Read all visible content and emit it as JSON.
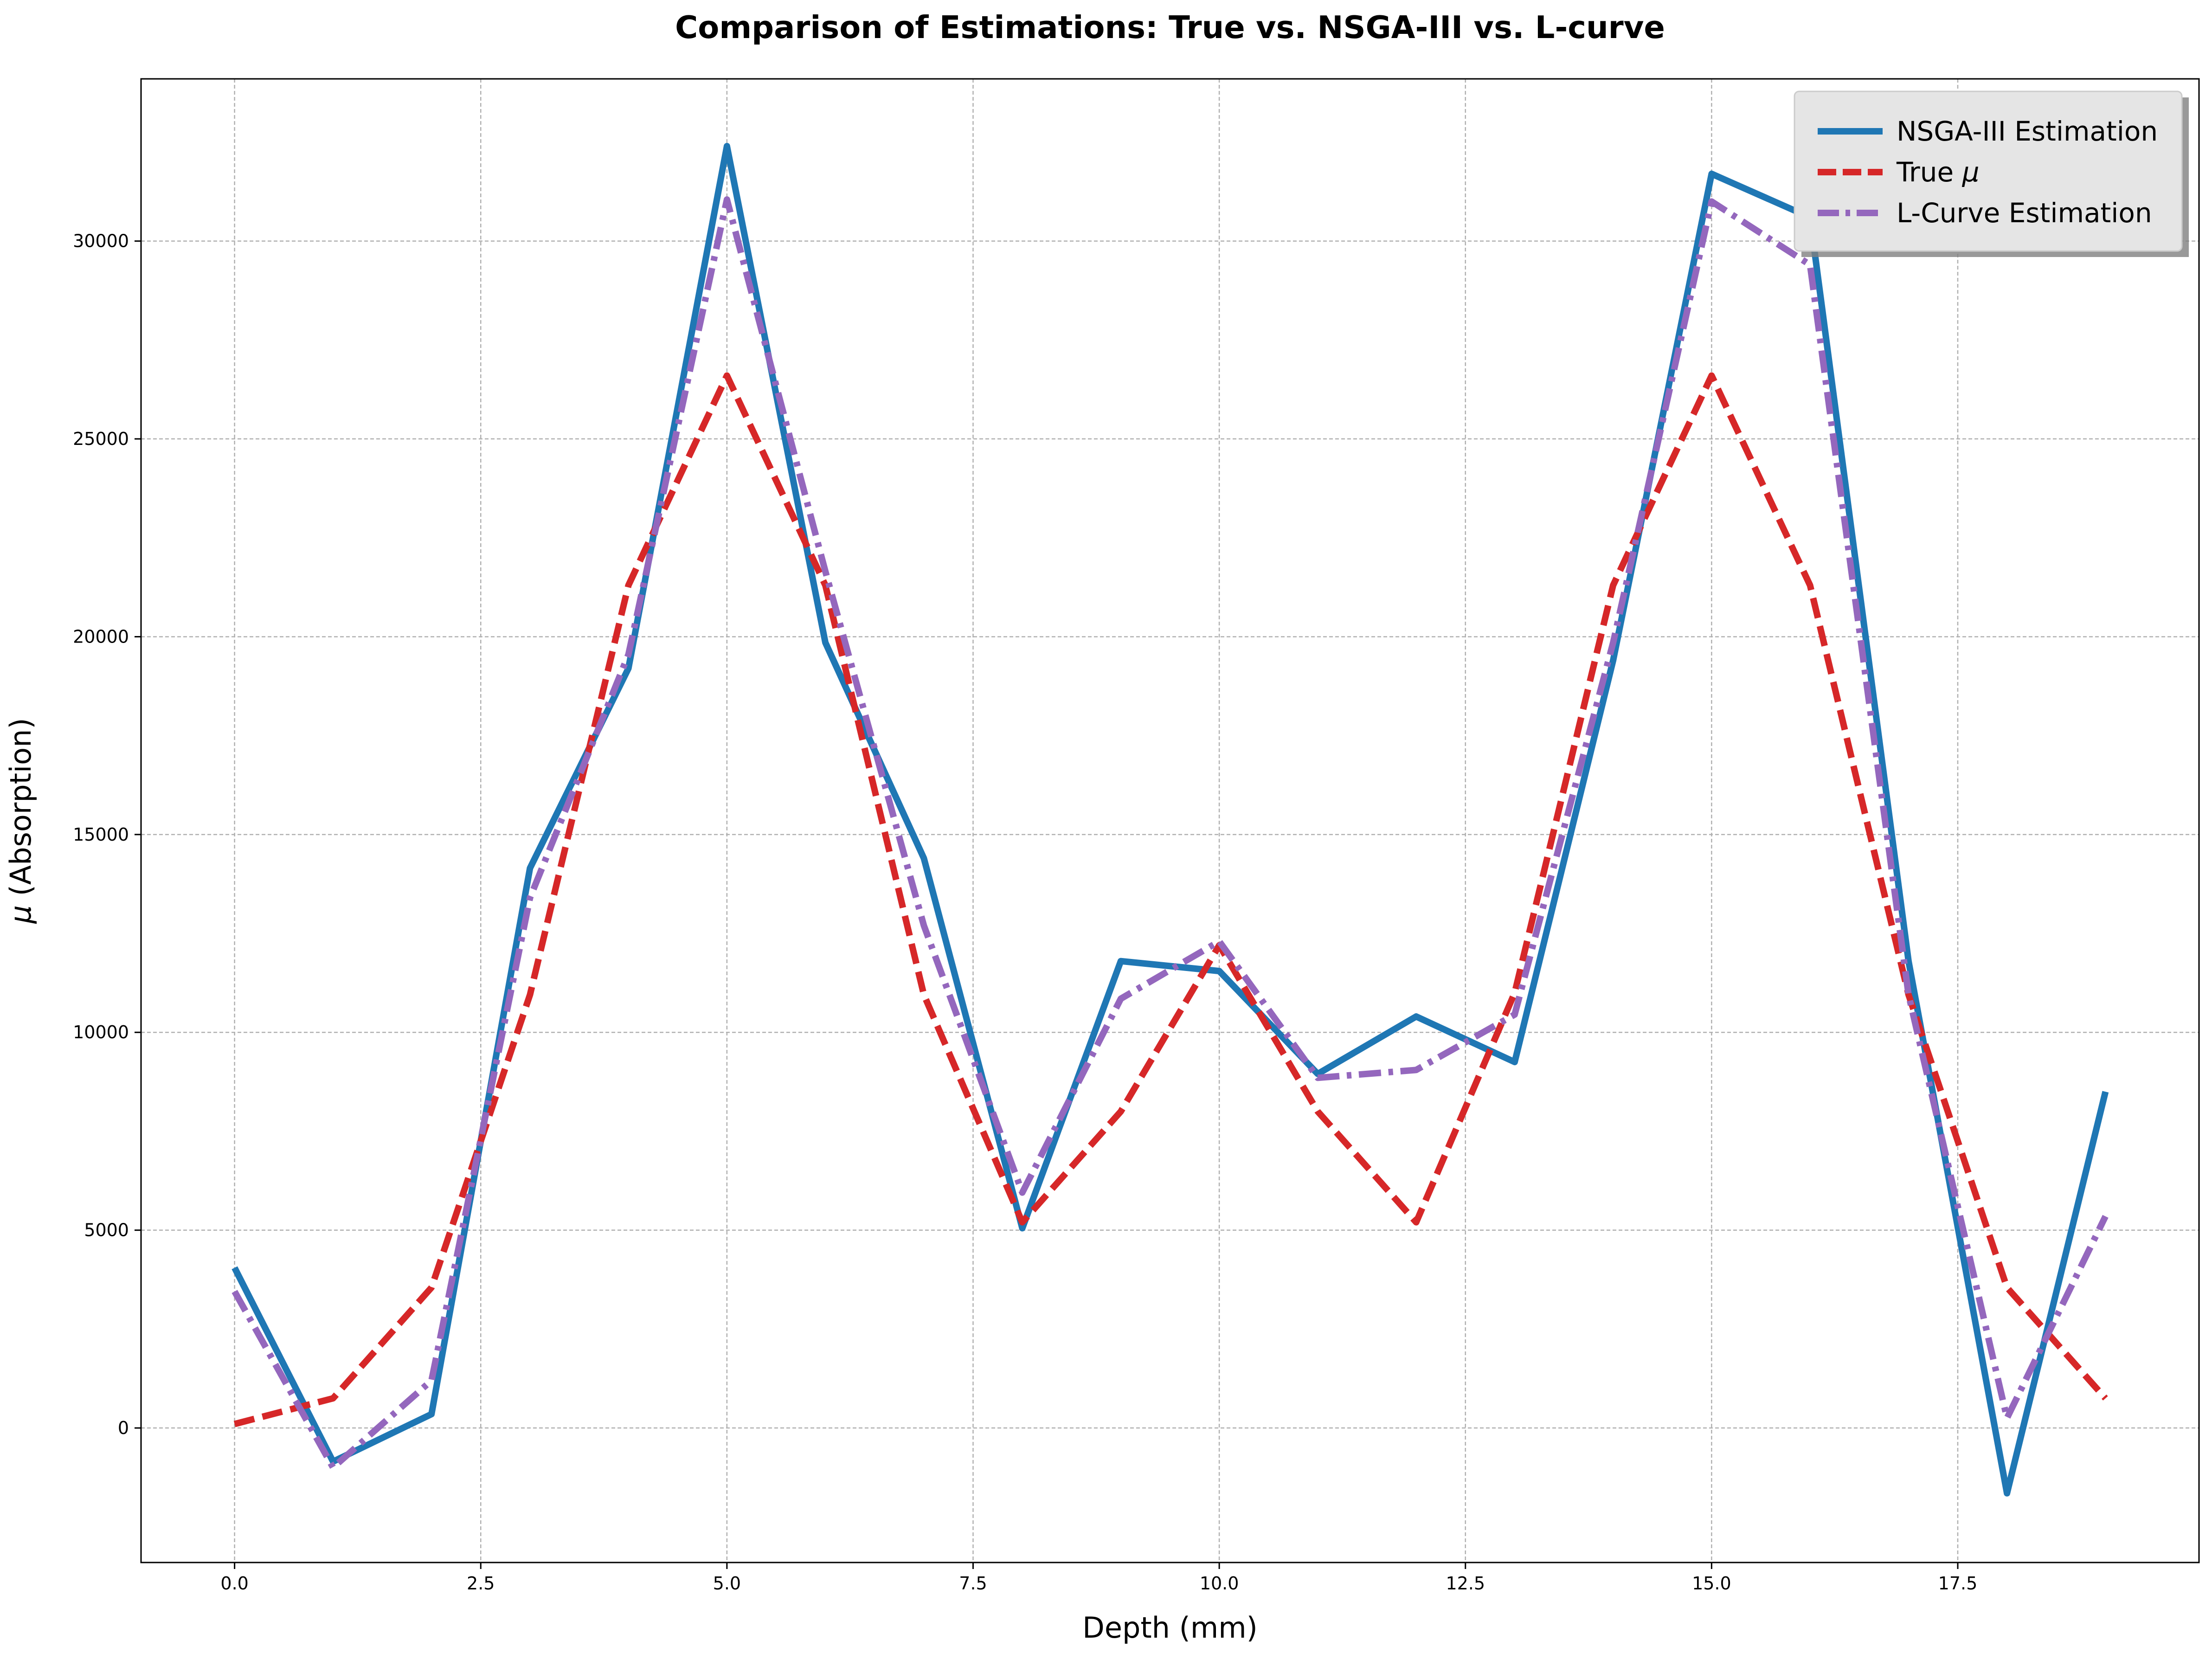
{
  "chart_data": {
    "type": "line",
    "title": "Comparison of Estimations: True vs. NSGA-III vs. L-curve",
    "xlabel": "Depth (mm)",
    "ylabel_symbol": "μ",
    "ylabel_text": " (Absorption)",
    "xlim": [
      -0.95,
      19.95
    ],
    "ylim": [
      -3400,
      34100
    ],
    "grid": true,
    "legend_position": "top-right",
    "x_ticks": [
      0,
      2.5,
      5,
      7.5,
      10,
      12.5,
      15,
      17.5
    ],
    "x_tick_labels": [
      "0.0",
      "2.5",
      "5.0",
      "7.5",
      "10.0",
      "12.5",
      "15.0",
      "17.5"
    ],
    "y_ticks": [
      0,
      5000,
      10000,
      15000,
      20000,
      25000,
      30000
    ],
    "y_tick_labels": [
      "0",
      "5000",
      "10000",
      "15000",
      "20000",
      "25000",
      "30000"
    ],
    "x": [
      0,
      1,
      2,
      3,
      4,
      5,
      6,
      7,
      8,
      9,
      10,
      11,
      12,
      13,
      14,
      15,
      16,
      17,
      18,
      19
    ],
    "series": [
      {
        "name": "NSGA-III Estimation",
        "legend_symbol": "",
        "color": "#1f77b4",
        "style": "solid",
        "values": [
          4050,
          -850,
          350,
          14150,
          19200,
          32400,
          19850,
          14400,
          5050,
          11800,
          11550,
          8950,
          10400,
          9250,
          19400,
          31700,
          30600,
          11800,
          -1650,
          8500
        ]
      },
      {
        "name": "True ",
        "legend_symbol": "μ",
        "color": "#d62728",
        "style": "dashed",
        "values": [
          100,
          750,
          3550,
          10950,
          21300,
          26600,
          21300,
          10950,
          5200,
          8000,
          12200,
          8000,
          5200,
          11000,
          21300,
          26600,
          21300,
          10950,
          3550,
          750
        ]
      },
      {
        "name": "L-Curve Estimation",
        "legend_symbol": "",
        "color": "#9467bd",
        "style": "dashdot",
        "values": [
          3450,
          -1000,
          1200,
          13400,
          19550,
          31050,
          21650,
          12700,
          5950,
          10850,
          12300,
          8850,
          9050,
          10450,
          19850,
          31000,
          29400,
          10950,
          250,
          5350
        ]
      }
    ]
  }
}
